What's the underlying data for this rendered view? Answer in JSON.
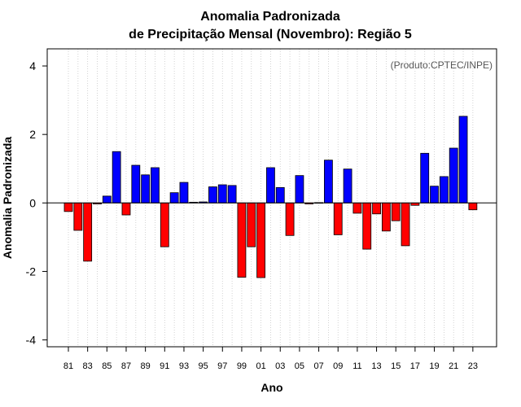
{
  "chart_data": {
    "type": "bar",
    "title": "Anomalia Padronizada",
    "subtitle": "de Precipitação Mensal (Novembro): Região 5",
    "xlabel": "Ano",
    "ylabel": "Anomalia Padronizada",
    "annotation": "(Produto:CPTEC/INPE)",
    "ylim": [
      -4.2,
      4.5
    ],
    "yticks": [
      -4,
      -2,
      0,
      2,
      4
    ],
    "ytick_labels": [
      "-4",
      "-2",
      "0",
      "2",
      "4"
    ],
    "xtick_labels": [
      "81",
      "83",
      "85",
      "87",
      "89",
      "91",
      "93",
      "95",
      "97",
      "99",
      "01",
      "03",
      "05",
      "07",
      "09",
      "11",
      "13",
      "15",
      "17",
      "19",
      "21",
      "23"
    ],
    "categories": [
      "1981",
      "1982",
      "1983",
      "1984",
      "1985",
      "1986",
      "1987",
      "1988",
      "1989",
      "1990",
      "1991",
      "1992",
      "1993",
      "1994",
      "1995",
      "1996",
      "1997",
      "1998",
      "1999",
      "2000",
      "2001",
      "2002",
      "2003",
      "2004",
      "2005",
      "2006",
      "2007",
      "2008",
      "2009",
      "2010",
      "2011",
      "2012",
      "2013",
      "2014",
      "2015",
      "2016",
      "2017",
      "2018",
      "2019",
      "2020",
      "2021",
      "2022",
      "2023"
    ],
    "values": [
      -0.25,
      -0.8,
      -1.7,
      -0.03,
      0.2,
      1.5,
      -0.35,
      1.1,
      0.82,
      1.03,
      -1.28,
      0.3,
      0.6,
      0.02,
      0.03,
      0.47,
      0.53,
      0.51,
      -2.17,
      -1.28,
      -2.18,
      1.03,
      0.45,
      -0.95,
      0.8,
      -0.03,
      0.01,
      1.25,
      -0.93,
      0.99,
      -0.3,
      -1.35,
      -0.32,
      -0.82,
      -0.52,
      -1.25,
      -0.07,
      1.45,
      0.49,
      0.77,
      1.6,
      2.53,
      -0.2
    ],
    "colors": {
      "positive": "#0000ff",
      "negative": "#ff0000",
      "grid": "#c8c8c8"
    }
  }
}
